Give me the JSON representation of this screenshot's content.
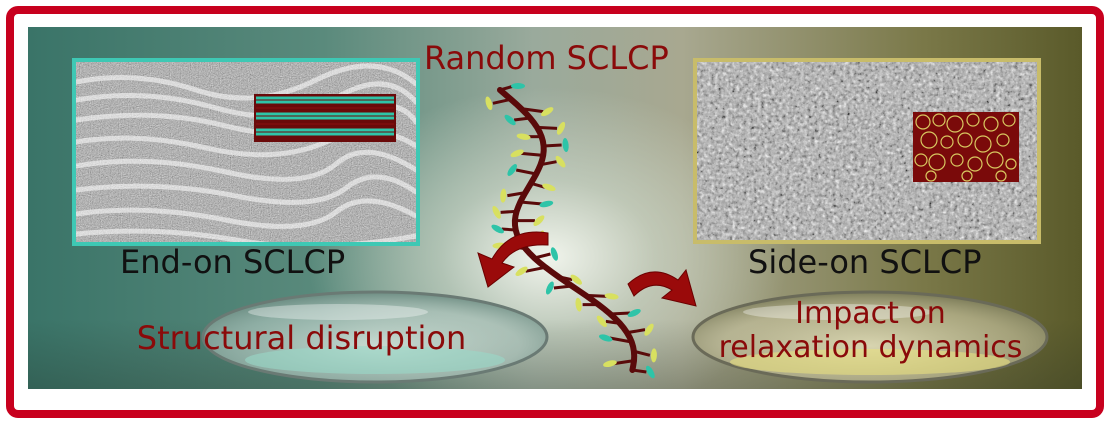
{
  "title": "Random SCLCP",
  "left_panel": {
    "caption": "End-on SCLCP"
  },
  "right_panel": {
    "caption": "Side-on SCLCP"
  },
  "left_bubble": {
    "text": "Structural disruption"
  },
  "right_bubble": {
    "line1": "Impact on",
    "line2": "relaxation dynamics"
  },
  "colors": {
    "frame": "#c8001e",
    "text_accent": "#8a0a0a",
    "left_border": "#3ec8b4",
    "right_border": "#c8bc6a",
    "mesogen_teal": "#2ec4a8",
    "mesogen_yellow": "#d8e060",
    "backbone": "#5a0a0a"
  }
}
